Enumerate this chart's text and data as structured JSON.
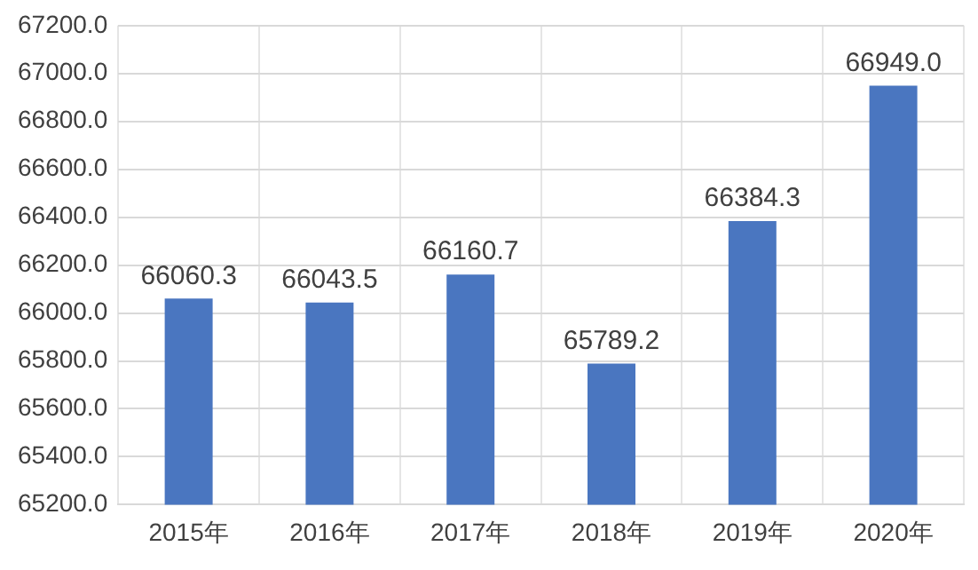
{
  "chart_data": {
    "type": "bar",
    "categories": [
      "2015年",
      "2016年",
      "2017年",
      "2018年",
      "2019年",
      "2020年"
    ],
    "values": [
      66060.3,
      66043.5,
      66160.7,
      65789.2,
      66384.3,
      66949.0
    ],
    "value_labels": [
      "66060.3",
      "66043.5",
      "66160.7",
      "65789.2",
      "66384.3",
      "66949.0"
    ],
    "color": "#4a76c0",
    "ylim": [
      65200,
      67200
    ],
    "yticks": [
      {
        "value": 65200,
        "label": "65200.0"
      },
      {
        "value": 65400,
        "label": "65400.0"
      },
      {
        "value": 65600,
        "label": "65600.0"
      },
      {
        "value": 65800,
        "label": "65800.0"
      },
      {
        "value": 66000,
        "label": "66000.0"
      },
      {
        "value": 66200,
        "label": "66200.0"
      },
      {
        "value": 66400,
        "label": "66400.0"
      },
      {
        "value": 66600,
        "label": "66600.0"
      },
      {
        "value": 66800,
        "label": "66800.0"
      },
      {
        "value": 67000,
        "label": "67000.0"
      },
      {
        "value": 67200,
        "label": "67200.0"
      }
    ],
    "grid": true,
    "legend": false
  }
}
